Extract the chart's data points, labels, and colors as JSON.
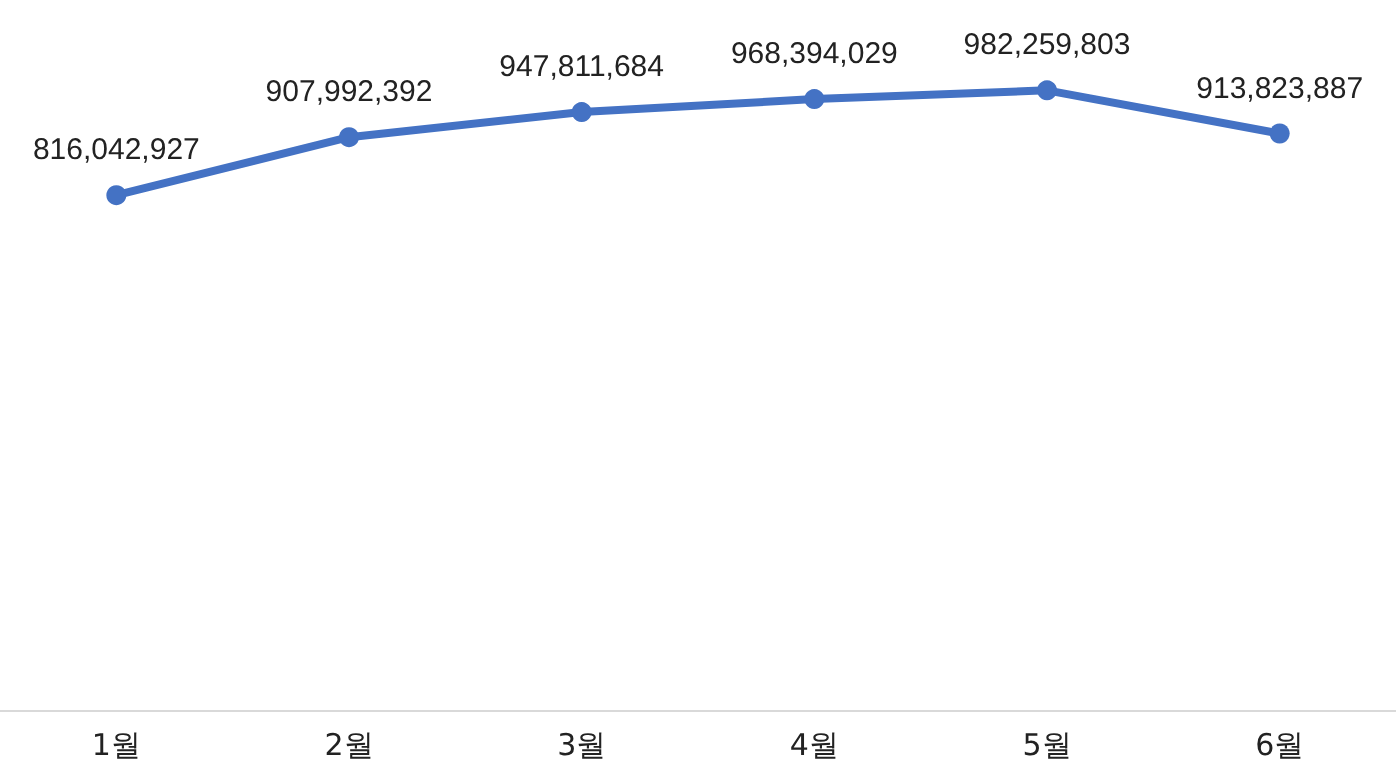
{
  "chart_data": {
    "type": "line",
    "categories": [
      "1월",
      "2월",
      "3월",
      "4월",
      "5월",
      "6월"
    ],
    "series": [
      {
        "color": "#4472c4",
        "values": [
          816042927,
          907992392,
          947811684,
          968394029,
          982259803,
          913823887
        ],
        "value_labels": [
          "816,042,927",
          "907,992,392",
          "947,811,684",
          "968,394,029",
          "982,259,803",
          "913,823,887"
        ]
      }
    ],
    "marker": "circle",
    "line_style": "solid"
  }
}
